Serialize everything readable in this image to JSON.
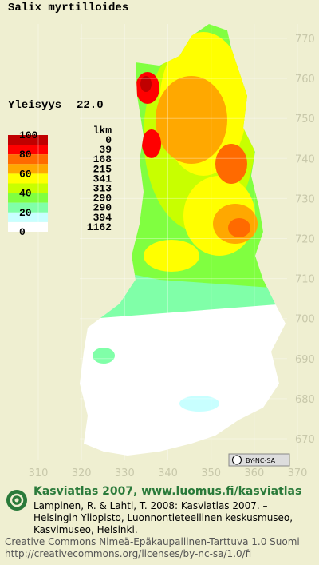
{
  "map": {
    "title": "Salix myrtilloides",
    "frequency_label": "Yleisyys",
    "frequency": "22.0",
    "legend": {
      "scale_labels": [
        100,
        80,
        60,
        40,
        20,
        0
      ],
      "count_header": "lkm",
      "counts": [
        0,
        39,
        168,
        215,
        341,
        313,
        290,
        290,
        394,
        1162
      ],
      "colors": [
        "#c00000",
        "#ff0000",
        "#ff6a00",
        "#ffa800",
        "#ffff00",
        "#c8ff00",
        "#80ff40",
        "#80ffa8",
        "#c8ffff",
        "#ffffff"
      ]
    },
    "y_grid_labels": [
      770,
      760,
      750,
      740,
      730,
      720,
      710,
      700,
      690,
      680,
      670
    ],
    "x_grid_labels": [
      310,
      320,
      330,
      340,
      350,
      360,
      370
    ]
  },
  "footer": {
    "license_badge": "BY-NC-SA",
    "heading": "Kasviatlas 2007, www.luomus.fi/kasviatlas",
    "citation": [
      "Lampinen, R. & Lahti, T. 2008: Kasviatlas 2007. –",
      "Helsingin Yliopisto, Luonnontieteellinen keskusmuseo,",
      "Kasvimuseo, Helsinki."
    ],
    "license": [
      "Creative Commons Nimeä-Epäkaupallinen-Tarttuva 1.0 Suomi",
      "http://creativecommons.org/licenses/by-nc-sa/1.0/fi"
    ]
  }
}
